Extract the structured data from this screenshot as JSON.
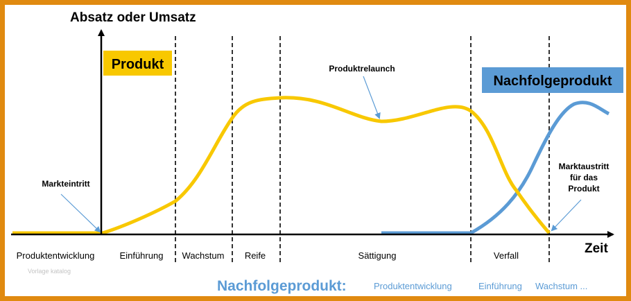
{
  "axes": {
    "y_label": "Absatz oder Umsatz",
    "x_label": "Zeit"
  },
  "boxes": {
    "product": {
      "label": "Produkt",
      "color": "#f8c800"
    },
    "successor": {
      "label": "Nachfolgeprodukt",
      "color": "#5b9bd5"
    }
  },
  "annotations": {
    "market_entry": "Markteintritt",
    "relaunch": "Produktrelaunch",
    "market_exit": [
      "Marktaustritt",
      "für das",
      "Produkt"
    ]
  },
  "phases": [
    "Produktentwicklung",
    "Einführung",
    "Wachstum",
    "Reife",
    "Sättigung",
    "Verfall"
  ],
  "watermark": "Vorlage katalog",
  "footer": {
    "title": "Nachfolgeprodukt:",
    "phases": [
      "Produktentwicklung",
      "Einführung",
      "Wachstum ..."
    ]
  },
  "colors": {
    "border": "#e08a10",
    "product_curve": "#f8c800",
    "successor_curve": "#5b9bd5",
    "arrow": "#5b9bd5",
    "axis": "#000000"
  }
}
